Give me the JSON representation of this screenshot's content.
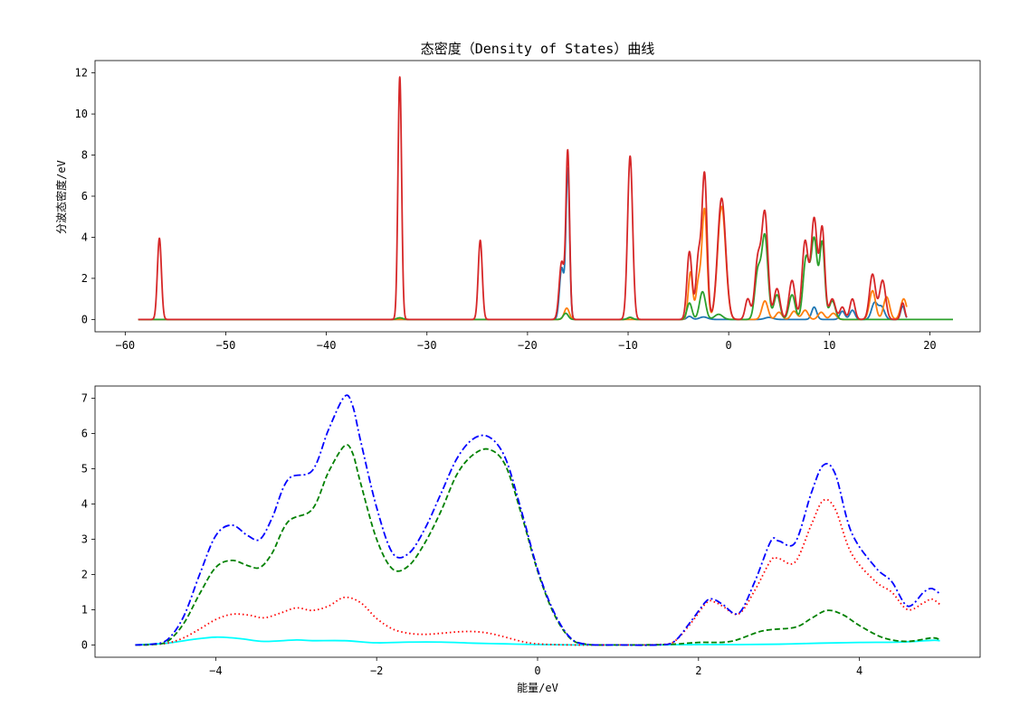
{
  "title": "态密度（Density of States）曲线",
  "chart_data": [
    {
      "type": "line",
      "title": "态密度（Density of States）曲线",
      "xlabel": "",
      "ylabel": "分波态密度/eV",
      "xlim": [
        -63,
        25
      ],
      "ylim": [
        -0.6,
        12.6
      ],
      "xticks": [
        -60,
        -50,
        -40,
        -30,
        -20,
        -10,
        0,
        10,
        20
      ],
      "yticks": [
        0,
        2,
        4,
        6,
        8,
        10,
        12
      ],
      "grid": false,
      "x_range": [
        -58.7,
        22.3
      ],
      "baseline_x_range": [
        -58.7,
        22.3
      ],
      "series": [
        {
          "color": "#1f77b4",
          "peaks": [
            [
              -16.6,
              2.5,
              0.22
            ],
            [
              -16.0,
              7.3,
              0.18
            ],
            [
              -9.8,
              0.1,
              0.25
            ],
            [
              -3.9,
              0.15,
              0.25
            ],
            [
              -2.5,
              0.12,
              0.4
            ],
            [
              4.0,
              0.1,
              0.4
            ],
            [
              8.5,
              0.6,
              0.25
            ],
            [
              11.3,
              0.4,
              0.25
            ],
            [
              12.3,
              0.45,
              0.25
            ],
            [
              14.5,
              0.8,
              0.3
            ],
            [
              15.2,
              0.6,
              0.3
            ],
            [
              17.3,
              0.65,
              0.2
            ]
          ],
          "x_range": [
            -58.7,
            17.7
          ]
        },
        {
          "color": "#ff7f0e",
          "peaks": [
            [
              -16.1,
              0.55,
              0.25
            ],
            [
              -3.8,
              2.3,
              0.22
            ],
            [
              -3.0,
              1.8,
              0.25
            ],
            [
              -2.4,
              5.3,
              0.25
            ],
            [
              -0.7,
              5.5,
              0.4
            ],
            [
              3.6,
              0.9,
              0.3
            ],
            [
              5.0,
              0.35,
              0.3
            ],
            [
              6.5,
              0.4,
              0.3
            ],
            [
              7.6,
              0.45,
              0.3
            ],
            [
              9.2,
              0.35,
              0.3
            ],
            [
              10.4,
              0.3,
              0.3
            ],
            [
              14.3,
              1.4,
              0.3
            ],
            [
              15.7,
              1.1,
              0.3
            ],
            [
              17.4,
              1.0,
              0.3
            ]
          ],
          "x_range": [
            -58.7,
            17.7
          ]
        },
        {
          "color": "#2ca02c",
          "peaks": [
            [
              -32.7,
              0.08,
              0.3
            ],
            [
              -16.2,
              0.3,
              0.25
            ],
            [
              -9.8,
              0.1,
              0.25
            ],
            [
              -3.9,
              0.8,
              0.25
            ],
            [
              -2.6,
              1.35,
              0.3
            ],
            [
              -1.0,
              0.25,
              0.4
            ],
            [
              2.9,
              2.3,
              0.3
            ],
            [
              3.6,
              4.0,
              0.3
            ],
            [
              4.8,
              1.2,
              0.3
            ],
            [
              6.3,
              1.2,
              0.3
            ],
            [
              7.7,
              3.0,
              0.3
            ],
            [
              8.5,
              3.9,
              0.3
            ],
            [
              9.3,
              3.7,
              0.25
            ],
            [
              10.3,
              0.9,
              0.3
            ]
          ],
          "x_range": [
            -58.7,
            22.3
          ]
        },
        {
          "color": "#d62728",
          "peaks": [
            [
              -56.6,
              3.95,
              0.2
            ],
            [
              -32.7,
              11.8,
              0.18
            ],
            [
              -24.7,
              3.85,
              0.2
            ],
            [
              -16.6,
              2.8,
              0.25
            ],
            [
              -16.0,
              8.1,
              0.18
            ],
            [
              -9.8,
              7.95,
              0.25
            ],
            [
              -3.9,
              3.3,
              0.25
            ],
            [
              -3.0,
              3.0,
              0.25
            ],
            [
              -2.4,
              7.0,
              0.25
            ],
            [
              -0.7,
              5.9,
              0.4
            ],
            [
              1.9,
              1.0,
              0.25
            ],
            [
              2.9,
              2.9,
              0.3
            ],
            [
              3.6,
              5.1,
              0.3
            ],
            [
              4.8,
              1.5,
              0.3
            ],
            [
              6.3,
              1.9,
              0.3
            ],
            [
              7.6,
              3.8,
              0.3
            ],
            [
              8.5,
              4.9,
              0.3
            ],
            [
              9.3,
              4.4,
              0.25
            ],
            [
              10.3,
              1.0,
              0.3
            ],
            [
              11.3,
              0.6,
              0.25
            ],
            [
              12.3,
              1.0,
              0.25
            ],
            [
              14.3,
              2.2,
              0.3
            ],
            [
              15.3,
              1.9,
              0.3
            ],
            [
              17.3,
              0.8,
              0.2
            ]
          ],
          "x_range": [
            -58.7,
            17.7
          ]
        }
      ]
    },
    {
      "type": "line",
      "title": "",
      "xlabel": "能量/eV",
      "ylabel": "",
      "xlim": [
        -5.5,
        5.5
      ],
      "ylim": [
        -0.35,
        7.35
      ],
      "xticks": [
        -4,
        -2,
        0,
        2,
        4
      ],
      "yticks": [
        0,
        1,
        2,
        3,
        4,
        5,
        6,
        7
      ],
      "grid": false,
      "x_range": [
        -5,
        5
      ],
      "series": [
        {
          "color": "#00ffff",
          "style": "solid",
          "points": [
            [
              -5,
              0
            ],
            [
              -4.6,
              0.05
            ],
            [
              -4.3,
              0.15
            ],
            [
              -4.0,
              0.22
            ],
            [
              -3.7,
              0.18
            ],
            [
              -3.4,
              0.1
            ],
            [
              -3.0,
              0.14
            ],
            [
              -2.8,
              0.12
            ],
            [
              -2.4,
              0.12
            ],
            [
              -2.0,
              0.06
            ],
            [
              -1.6,
              0.08
            ],
            [
              -1.2,
              0.08
            ],
            [
              -0.8,
              0.05
            ],
            [
              -0.4,
              0.03
            ],
            [
              0,
              0.01
            ],
            [
              0.5,
              0
            ],
            [
              1.0,
              0
            ],
            [
              1.5,
              0
            ],
            [
              2.0,
              0.01
            ],
            [
              2.5,
              0.01
            ],
            [
              3.0,
              0.02
            ],
            [
              3.5,
              0.05
            ],
            [
              4.0,
              0.07
            ],
            [
              4.5,
              0.08
            ],
            [
              4.9,
              0.13
            ],
            [
              5,
              0.12
            ]
          ]
        },
        {
          "color": "#ff0000",
          "style": "dotted",
          "points": [
            [
              -5,
              0
            ],
            [
              -4.8,
              0.01
            ],
            [
              -4.6,
              0.05
            ],
            [
              -4.4,
              0.2
            ],
            [
              -4.2,
              0.45
            ],
            [
              -4.0,
              0.72
            ],
            [
              -3.8,
              0.87
            ],
            [
              -3.6,
              0.85
            ],
            [
              -3.4,
              0.77
            ],
            [
              -3.2,
              0.9
            ],
            [
              -3.0,
              1.05
            ],
            [
              -2.8,
              0.98
            ],
            [
              -2.6,
              1.1
            ],
            [
              -2.4,
              1.35
            ],
            [
              -2.2,
              1.2
            ],
            [
              -2.0,
              0.75
            ],
            [
              -1.8,
              0.45
            ],
            [
              -1.6,
              0.33
            ],
            [
              -1.4,
              0.3
            ],
            [
              -1.2,
              0.33
            ],
            [
              -1.0,
              0.37
            ],
            [
              -0.8,
              0.38
            ],
            [
              -0.6,
              0.33
            ],
            [
              -0.4,
              0.22
            ],
            [
              -0.2,
              0.1
            ],
            [
              0,
              0.03
            ],
            [
              0.4,
              0
            ],
            [
              1.0,
              0
            ],
            [
              1.5,
              0.01
            ],
            [
              1.7,
              0.1
            ],
            [
              1.9,
              0.6
            ],
            [
              2.1,
              1.2
            ],
            [
              2.2,
              1.22
            ],
            [
              2.3,
              1.1
            ],
            [
              2.5,
              0.88
            ],
            [
              2.7,
              1.55
            ],
            [
              2.9,
              2.4
            ],
            [
              3.0,
              2.45
            ],
            [
              3.2,
              2.35
            ],
            [
              3.4,
              3.4
            ],
            [
              3.55,
              4.1
            ],
            [
              3.7,
              3.85
            ],
            [
              3.9,
              2.6
            ],
            [
              4.2,
              1.8
            ],
            [
              4.4,
              1.5
            ],
            [
              4.6,
              1.0
            ],
            [
              4.8,
              1.2
            ],
            [
              4.9,
              1.3
            ],
            [
              5,
              1.15
            ]
          ]
        },
        {
          "color": "#008000",
          "style": "dashed",
          "points": [
            [
              -5,
              0
            ],
            [
              -4.8,
              0.01
            ],
            [
              -4.6,
              0.1
            ],
            [
              -4.4,
              0.6
            ],
            [
              -4.2,
              1.45
            ],
            [
              -4.0,
              2.2
            ],
            [
              -3.8,
              2.4
            ],
            [
              -3.6,
              2.25
            ],
            [
              -3.45,
              2.2
            ],
            [
              -3.3,
              2.6
            ],
            [
              -3.1,
              3.5
            ],
            [
              -2.8,
              3.85
            ],
            [
              -2.6,
              4.9
            ],
            [
              -2.4,
              5.65
            ],
            [
              -2.3,
              5.45
            ],
            [
              -2.2,
              4.6
            ],
            [
              -2.0,
              3.0
            ],
            [
              -1.8,
              2.15
            ],
            [
              -1.6,
              2.25
            ],
            [
              -1.4,
              2.9
            ],
            [
              -1.2,
              3.8
            ],
            [
              -1.0,
              4.85
            ],
            [
              -0.8,
              5.4
            ],
            [
              -0.6,
              5.55
            ],
            [
              -0.4,
              5.1
            ],
            [
              -0.2,
              3.7
            ],
            [
              0,
              2.1
            ],
            [
              0.2,
              0.9
            ],
            [
              0.4,
              0.2
            ],
            [
              0.6,
              0.02
            ],
            [
              1.0,
              0
            ],
            [
              1.6,
              0.01
            ],
            [
              2.0,
              0.07
            ],
            [
              2.4,
              0.1
            ],
            [
              2.8,
              0.4
            ],
            [
              3.2,
              0.5
            ],
            [
              3.4,
              0.75
            ],
            [
              3.6,
              0.98
            ],
            [
              3.8,
              0.85
            ],
            [
              4.0,
              0.55
            ],
            [
              4.3,
              0.2
            ],
            [
              4.6,
              0.1
            ],
            [
              4.9,
              0.2
            ],
            [
              5,
              0.15
            ]
          ]
        },
        {
          "color": "#0000ff",
          "style": "dashdot",
          "points": [
            [
              -5,
              0
            ],
            [
              -4.8,
              0.02
            ],
            [
              -4.6,
              0.15
            ],
            [
              -4.4,
              0.8
            ],
            [
              -4.2,
              2.0
            ],
            [
              -4.0,
              3.1
            ],
            [
              -3.8,
              3.4
            ],
            [
              -3.6,
              3.1
            ],
            [
              -3.45,
              3.0
            ],
            [
              -3.3,
              3.6
            ],
            [
              -3.1,
              4.7
            ],
            [
              -2.8,
              4.95
            ],
            [
              -2.6,
              6.1
            ],
            [
              -2.4,
              7.05
            ],
            [
              -2.3,
              6.8
            ],
            [
              -2.2,
              5.8
            ],
            [
              -2.0,
              3.9
            ],
            [
              -1.8,
              2.6
            ],
            [
              -1.6,
              2.6
            ],
            [
              -1.4,
              3.3
            ],
            [
              -1.2,
              4.3
            ],
            [
              -1.0,
              5.3
            ],
            [
              -0.8,
              5.85
            ],
            [
              -0.6,
              5.9
            ],
            [
              -0.4,
              5.3
            ],
            [
              -0.2,
              3.8
            ],
            [
              0,
              2.15
            ],
            [
              0.2,
              0.95
            ],
            [
              0.4,
              0.22
            ],
            [
              0.6,
              0.02
            ],
            [
              1.0,
              0
            ],
            [
              1.5,
              0
            ],
            [
              1.7,
              0.1
            ],
            [
              1.9,
              0.65
            ],
            [
              2.1,
              1.25
            ],
            [
              2.2,
              1.28
            ],
            [
              2.3,
              1.15
            ],
            [
              2.5,
              0.9
            ],
            [
              2.7,
              1.8
            ],
            [
              2.9,
              2.95
            ],
            [
              3.0,
              2.95
            ],
            [
              3.2,
              2.9
            ],
            [
              3.4,
              4.3
            ],
            [
              3.55,
              5.1
            ],
            [
              3.7,
              4.85
            ],
            [
              3.9,
              3.2
            ],
            [
              4.2,
              2.2
            ],
            [
              4.4,
              1.8
            ],
            [
              4.6,
              1.1
            ],
            [
              4.8,
              1.5
            ],
            [
              4.9,
              1.6
            ],
            [
              5,
              1.45
            ]
          ]
        }
      ]
    }
  ]
}
